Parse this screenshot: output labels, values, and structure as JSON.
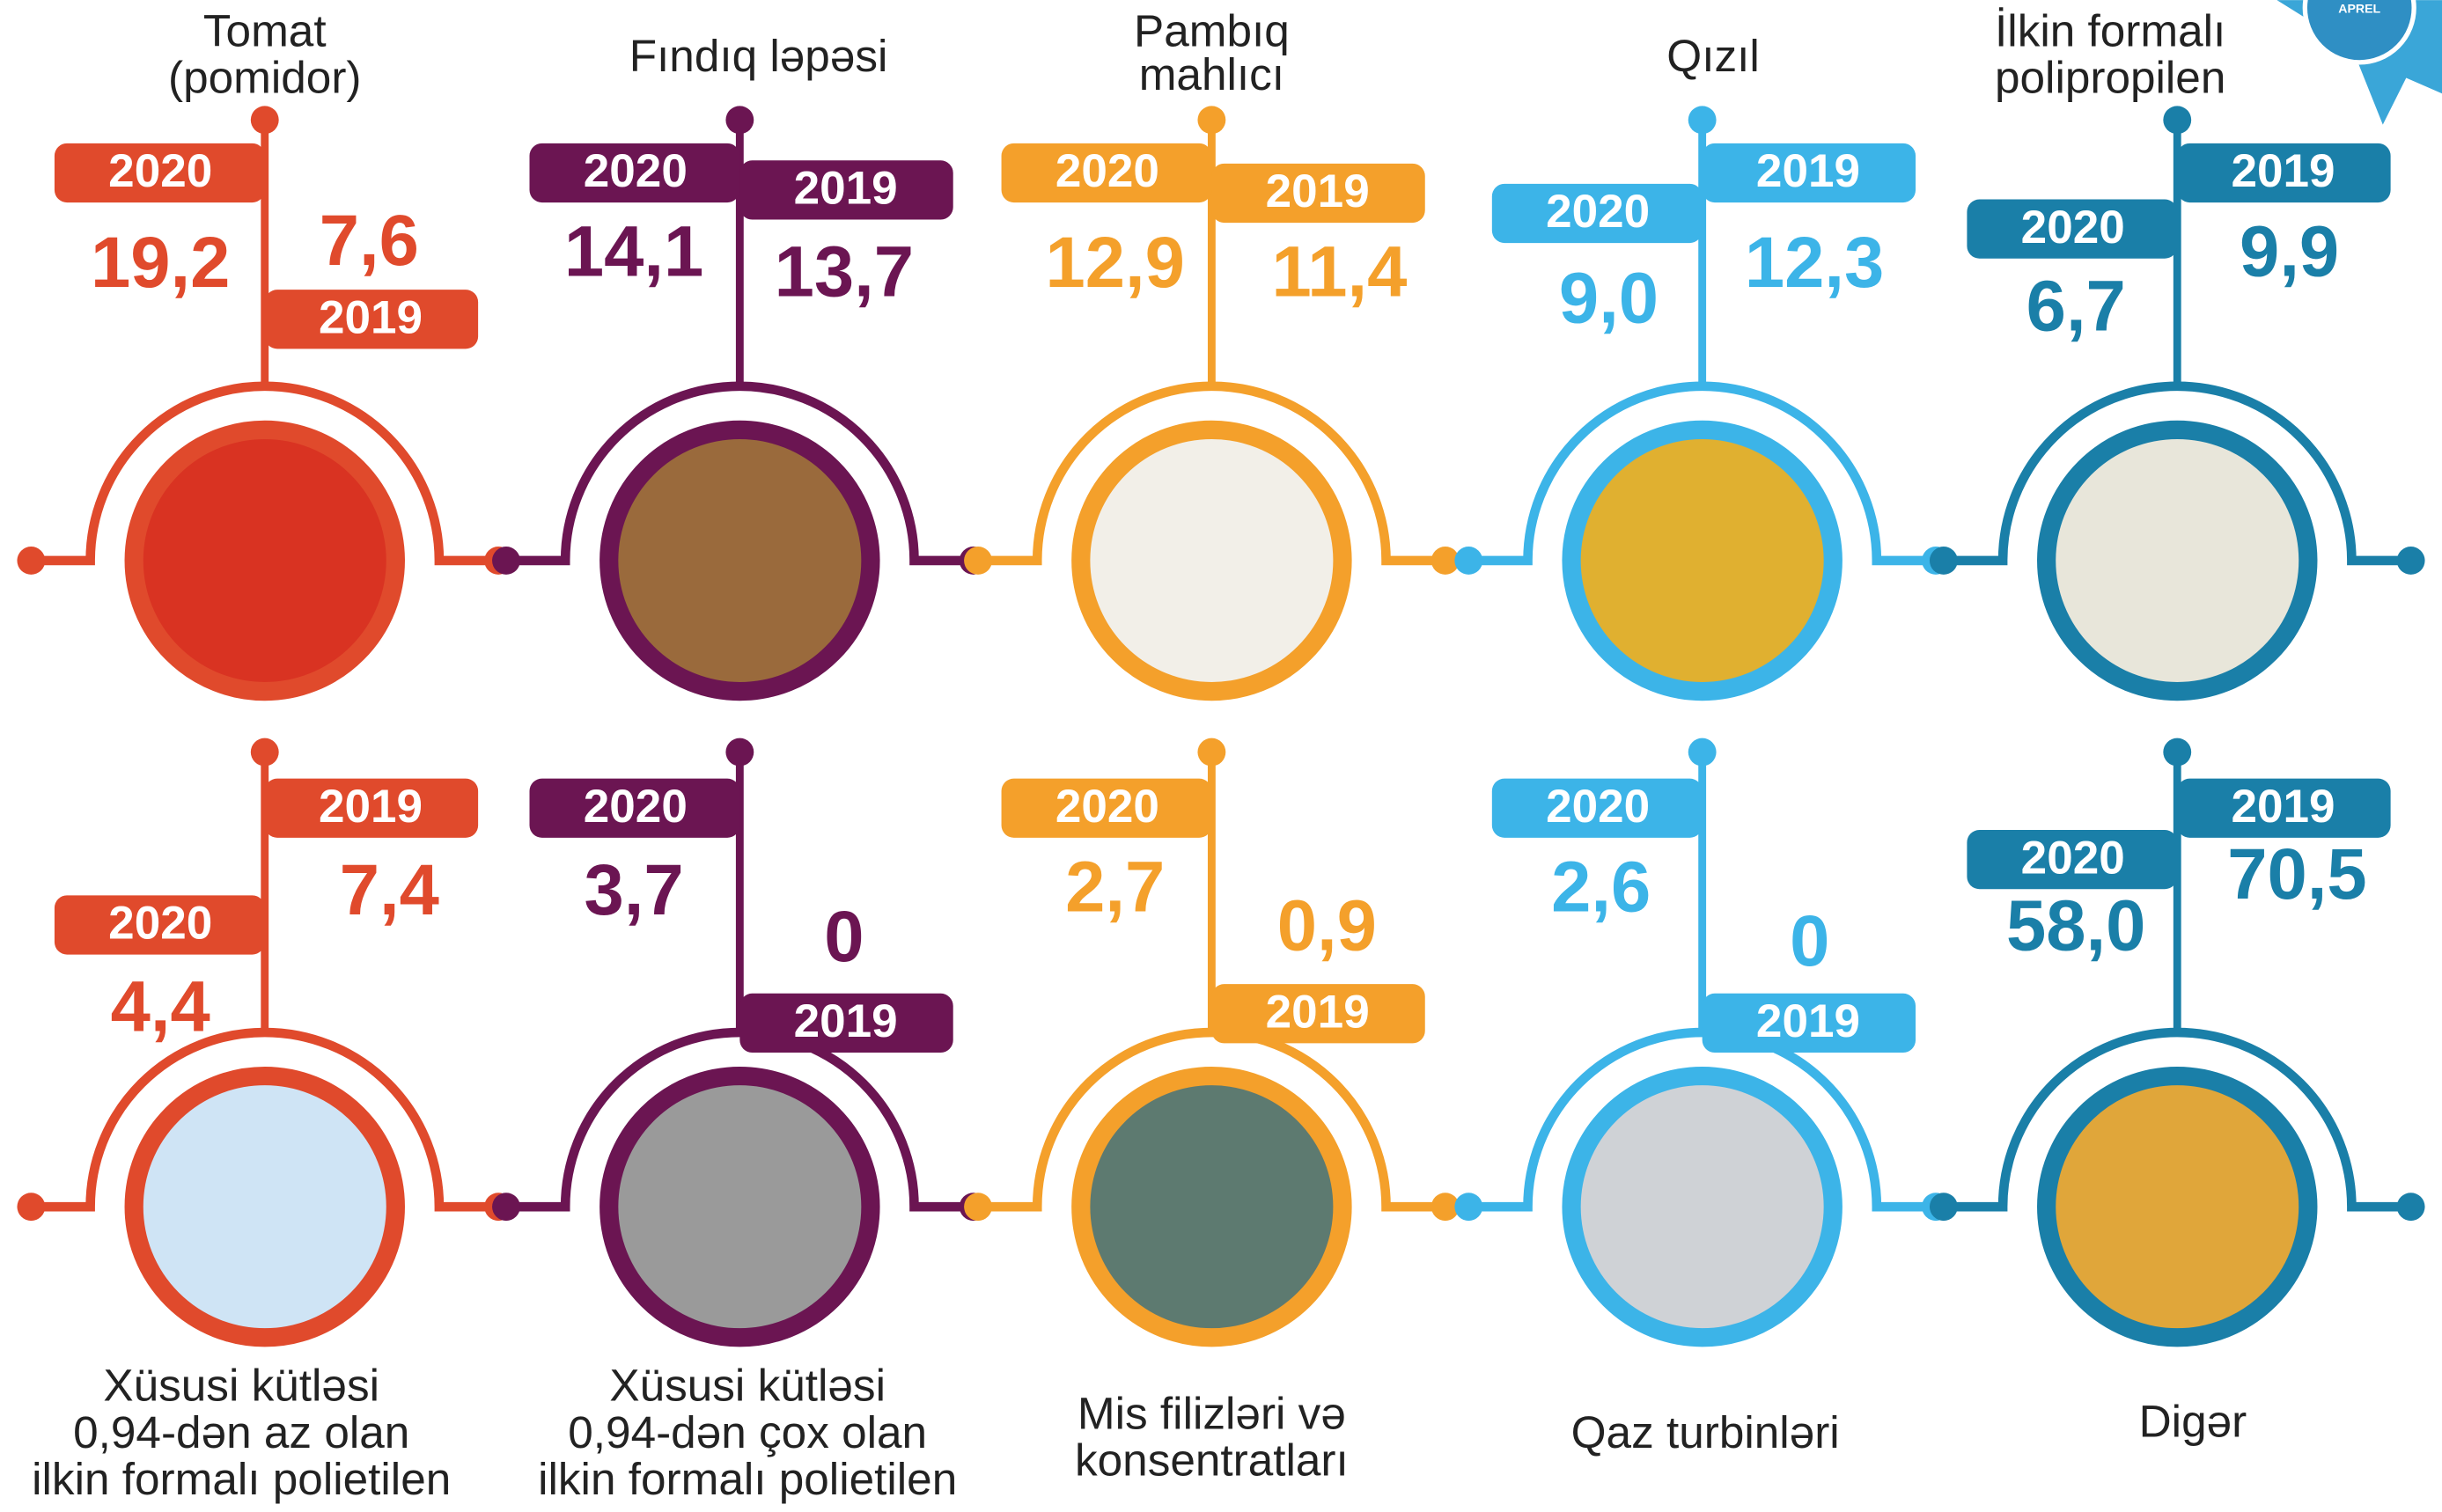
{
  "badge": "APREL",
  "years": {
    "y2020": "2020",
    "y2019": "2019"
  },
  "items": [
    {
      "name": [
        "Tomat",
        "(pomidor)"
      ],
      "v2020": "19,2",
      "v2019": "7,6"
    },
    {
      "name": [
        "Fındıq ləpəsi"
      ],
      "v2020": "14,1",
      "v2019": "13,7"
    },
    {
      "name": [
        "Pambıq",
        "mahlıcı"
      ],
      "v2020": "12,9",
      "v2019": "11,4"
    },
    {
      "name": [
        "Qızıl"
      ],
      "v2020": "9,0",
      "v2019": "12,3"
    },
    {
      "name": [
        "İlkin formalı",
        "polipropilen"
      ],
      "v2020": "6,7",
      "v2019": "9,9"
    },
    {
      "name": [
        "Xüsusi kütləsi",
        "0,94-dən az olan",
        "ilkin formalı polietilen"
      ],
      "v2020": "4,4",
      "v2019": "7,4"
    },
    {
      "name": [
        "Xüsusi kütləsi",
        "0,94-dən çox olan",
        "ilkin formalı polietilen"
      ],
      "v2020": "3,7",
      "v2019": "0"
    },
    {
      "name": [
        "Mis filizləri və",
        "konsentratları"
      ],
      "v2020": "2,7",
      "v2019": "0,9"
    },
    {
      "name": [
        "Qaz turbinləri"
      ],
      "v2020": "2,6",
      "v2019": "0"
    },
    {
      "name": [
        "Digər"
      ],
      "v2020": "58,0",
      "v2019": "70,5"
    }
  ]
}
